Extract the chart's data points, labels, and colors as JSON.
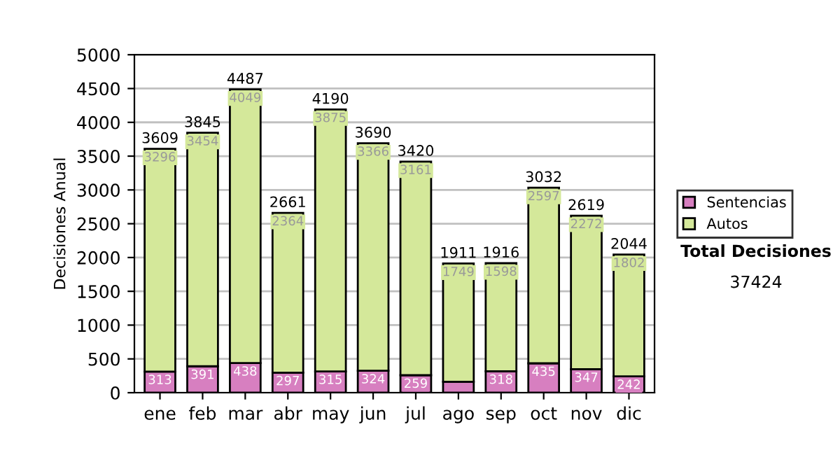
{
  "chart_data": {
    "type": "bar",
    "stacked": true,
    "ylabel": "Decisiones Anual",
    "categories": [
      "ene",
      "feb",
      "mar",
      "abr",
      "may",
      "jun",
      "jul",
      "ago",
      "sep",
      "oct",
      "nov",
      "dic"
    ],
    "series": [
      {
        "name": "Sentencias",
        "color": "#d77fc0",
        "values": [
          313,
          391,
          438,
          297,
          315,
          324,
          259,
          162,
          318,
          435,
          347,
          242
        ],
        "value_labels": [
          "313",
          "391",
          "438",
          "297",
          "315",
          "324",
          "259",
          null,
          "318",
          "435",
          "347",
          "242"
        ]
      },
      {
        "name": "Autos",
        "color": "#d4e89a",
        "values": [
          3296,
          3454,
          4049,
          2364,
          3875,
          3366,
          3161,
          1749,
          1598,
          2597,
          2272,
          1802
        ],
        "value_labels": [
          "3296",
          "3454",
          "4049",
          "2364",
          "3875",
          "3366",
          "3161",
          "1749",
          "1598",
          "2597",
          "2272",
          "1802"
        ]
      }
    ],
    "totals": [
      "3609",
      "3845",
      "4487",
      "2661",
      "4190",
      "3690",
      "3420",
      "1911",
      "1916",
      "3032",
      "2619",
      "2044"
    ],
    "ylim": [
      0,
      5000
    ],
    "yticks": [
      0,
      500,
      1000,
      1500,
      2000,
      2500,
      3000,
      3500,
      4000,
      4500,
      5000
    ],
    "grid": "y",
    "legend": "right",
    "annotations": [
      "Total Decisiones",
      "37424"
    ]
  }
}
